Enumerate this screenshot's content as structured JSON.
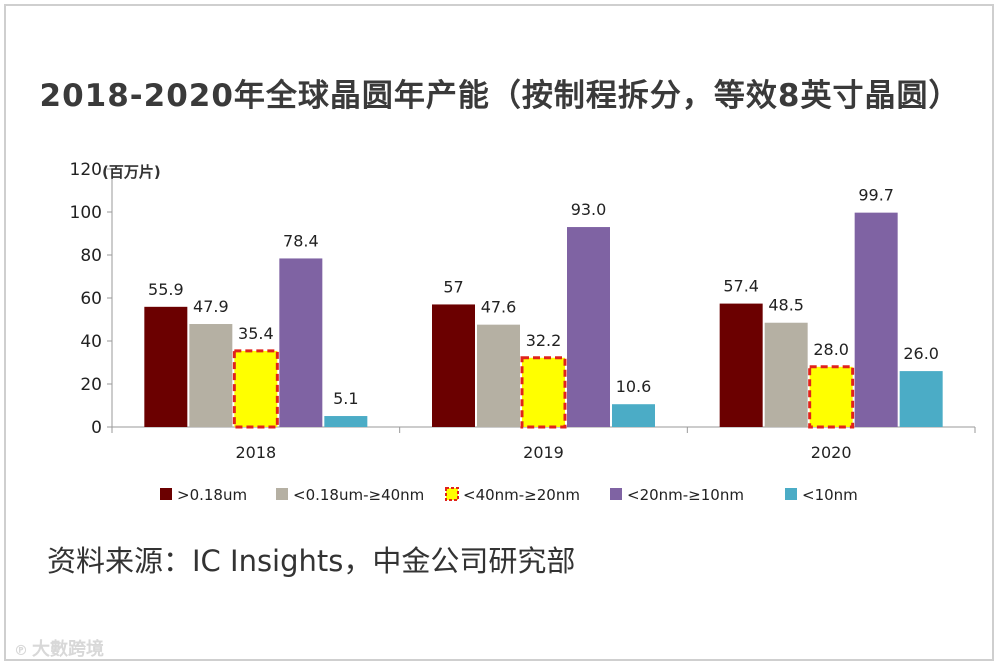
{
  "chart_data": {
    "type": "bar",
    "title": "2018-2020年全球晶圆年产能（按制程拆分，等效8英寸晶圆）",
    "unit_label": "(百万片)",
    "categories": [
      "2018",
      "2019",
      "2020"
    ],
    "ylim": [
      0,
      120
    ],
    "yticks": [
      0,
      20,
      40,
      60,
      80,
      100,
      120
    ],
    "legend_position": "bottom",
    "series": [
      {
        "name": ">0.18um",
        "color": "#6b0000",
        "values": [
          55.9,
          57,
          57.4
        ],
        "labels": [
          "55.9",
          "57",
          "57.4"
        ],
        "highlight": false
      },
      {
        "name": "<0.18um-≥40nm",
        "color": "#b5b0a3",
        "values": [
          47.9,
          47.6,
          48.5
        ],
        "labels": [
          "47.9",
          "47.6",
          "48.5"
        ],
        "highlight": false
      },
      {
        "name": "<40nm-≥20nm",
        "color": "#ffff00",
        "values": [
          35.4,
          32.2,
          28.0
        ],
        "labels": [
          "35.4",
          "32.2",
          "28.0"
        ],
        "highlight": true
      },
      {
        "name": "<20nm-≥10nm",
        "color": "#7f63a3",
        "values": [
          78.4,
          93.0,
          99.7
        ],
        "labels": [
          "78.4",
          "93.0",
          "99.7"
        ],
        "highlight": false
      },
      {
        "name": "<10nm",
        "color": "#4bacc6",
        "values": [
          5.1,
          10.6,
          26.0
        ],
        "labels": [
          "5.1",
          "10.6",
          "26.0"
        ],
        "highlight": false
      }
    ]
  },
  "source_text": "资料来源：IC Insights，中金公司研究部",
  "watermark_text": "大數跨境"
}
